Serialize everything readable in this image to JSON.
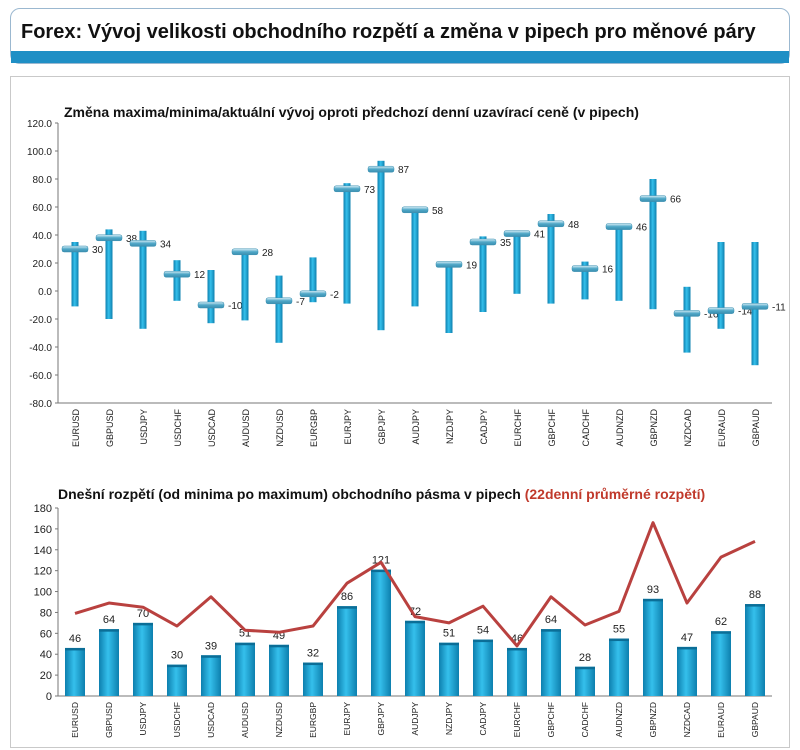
{
  "header": {
    "title": "Forex: Vývoj velikosti obchodního rozpětí a změna v pipech pro měnové páry"
  },
  "colors": {
    "bar": "#1ca3d4",
    "bar_dark": "#0d7fae",
    "marker": "#4fa7c7",
    "line_red": "#b9413f",
    "header_bar": "#1f8fc5"
  },
  "chart_data": [
    {
      "type": "range",
      "title": "Změna maxima/minima/aktuální vývoj oproti předchozí denní uzavírací ceně (v pipech)",
      "categories": [
        "EURUSD",
        "GBPUSD",
        "USDJPY",
        "USDCHF",
        "USDCAD",
        "AUDUSD",
        "NZDUSD",
        "EURGBP",
        "EURJPY",
        "GBPJPY",
        "AUDJPY",
        "NZDJPY",
        "CADJPY",
        "EURCHF",
        "GBPCHF",
        "CADCHF",
        "AUDNZD",
        "GBPNZD",
        "NZDCAD",
        "EURAUD",
        "GBPAUD"
      ],
      "high": [
        35,
        44,
        43,
        22,
        15,
        30,
        11,
        24,
        77,
        93,
        60,
        21,
        39,
        43,
        55,
        21,
        47,
        80,
        3,
        35,
        35
      ],
      "low": [
        -11,
        -20,
        -27,
        -7,
        -23,
        -21,
        -37,
        -8,
        -9,
        -28,
        -11,
        -30,
        -15,
        -2,
        -9,
        -6,
        -7,
        -13,
        -44,
        -27,
        -53
      ],
      "current": [
        30,
        38,
        34,
        12,
        -10,
        28,
        -7,
        -2,
        73,
        87,
        58,
        19,
        35,
        41,
        48,
        16,
        46,
        66,
        -16,
        -14,
        -11
      ],
      "labels": [
        "30",
        "38",
        "34",
        "12",
        "-10",
        "28",
        "-7",
        "-2",
        "73",
        "87",
        "58",
        "19",
        "35",
        "41",
        "48",
        "16",
        "46",
        "66",
        "-16",
        "-14",
        "-11"
      ],
      "ylim": [
        -80,
        120
      ],
      "yticks": [
        "-80.0",
        "-60.0",
        "-40.0",
        "-20.0",
        "0.0",
        "20.0",
        "40.0",
        "60.0",
        "80.0",
        "100.0",
        "120.0"
      ],
      "grid": false
    },
    {
      "type": "bar+line",
      "title": "Dnešní rozpětí (od minima po maximum) obchodního pásma v pipech",
      "title_suffix": "(22denní průměrné rozpětí)",
      "categories": [
        "EURUSD",
        "GBPUSD",
        "USDJPY",
        "USDCHF",
        "USDCAD",
        "AUDUSD",
        "NZDUSD",
        "EURGBP",
        "EURJPY",
        "GBPJPY",
        "AUDJPY",
        "NZDJPY",
        "CADJPY",
        "EURCHF",
        "GBPCHF",
        "CADCHF",
        "AUDNZD",
        "GBPNZD",
        "NZDCAD",
        "EURAUD",
        "GBPAUD"
      ],
      "values": [
        46,
        64,
        70,
        30,
        39,
        51,
        49,
        32,
        86,
        121,
        72,
        51,
        54,
        46,
        64,
        28,
        55,
        93,
        47,
        62,
        88
      ],
      "labels": [
        "46",
        "64",
        "70",
        "30",
        "39",
        "51",
        "49",
        "32",
        "86",
        "121",
        "72",
        "51",
        "54",
        "46",
        "64",
        "28",
        "55",
        "93",
        "47",
        "62",
        "88"
      ],
      "average": [
        79,
        89,
        85,
        67,
        95,
        63,
        61,
        67,
        108,
        128,
        76,
        70,
        86,
        48,
        95,
        68,
        81,
        166,
        89,
        133,
        148
      ],
      "ylim": [
        0,
        180
      ],
      "yticks": [
        "0",
        "20",
        "40",
        "60",
        "80",
        "100",
        "120",
        "140",
        "160",
        "180"
      ],
      "grid": false
    }
  ]
}
